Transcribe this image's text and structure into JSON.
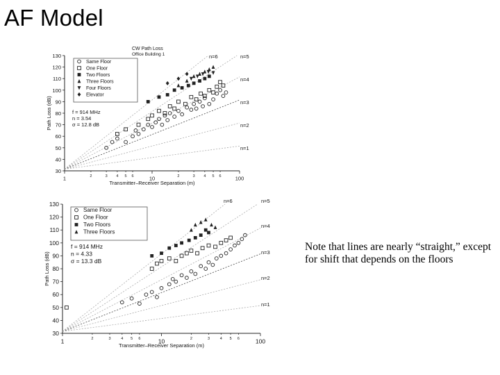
{
  "slide": {
    "title": "AF Model",
    "note": "Note that lines are nearly “straight,” except for shift that depends on the floors"
  },
  "chart_data": [
    {
      "type": "scatter",
      "title": "CW Path Loss",
      "subtitle": "Office Building 1",
      "xlabel": "Transmitter–Receiver Separation (m)",
      "ylabel": "Path Loss (dB)",
      "x_scale": "log",
      "xlim": [
        1,
        100
      ],
      "ylim": [
        30,
        130
      ],
      "x_major_ticks": [
        "1",
        "10",
        "100"
      ],
      "x_minor_ticks": [
        "2",
        "3",
        "4",
        "5",
        "6",
        "2",
        "3",
        "4",
        "5",
        "6"
      ],
      "y_ticks": [
        "30",
        "40",
        "50",
        "60",
        "70",
        "80",
        "90",
        "100",
        "110",
        "120",
        "130"
      ],
      "legend_position": "top-left",
      "annotation": [
        "f = 914 MHz",
        "n = 3.54",
        "σ = 12.8 dB"
      ],
      "reference_lines": [
        {
          "label": "n=1",
          "n": 1
        },
        {
          "label": "n=2",
          "n": 2
        },
        {
          "label": "n=3",
          "n": 3
        },
        {
          "label": "n=4",
          "n": 4
        },
        {
          "label": "n=5",
          "n": 5
        },
        {
          "label": "n=6",
          "n": 6
        }
      ],
      "series": [
        {
          "name": "Same Floor",
          "marker": "circle-open",
          "points": [
            [
              3,
              50
            ],
            [
              3.5,
              55
            ],
            [
              4,
              58
            ],
            [
              5,
              55
            ],
            [
              6,
              60
            ],
            [
              6.5,
              65
            ],
            [
              7,
              62
            ],
            [
              8,
              66
            ],
            [
              9,
              70
            ],
            [
              10,
              68
            ],
            [
              11,
              72
            ],
            [
              12,
              75
            ],
            [
              13,
              70
            ],
            [
              14,
              78
            ],
            [
              15,
              74
            ],
            [
              16,
              80
            ],
            [
              18,
              77
            ],
            [
              20,
              82
            ],
            [
              22,
              79
            ],
            [
              25,
              85
            ],
            [
              28,
              83
            ],
            [
              30,
              88
            ],
            [
              32,
              84
            ],
            [
              35,
              90
            ],
            [
              38,
              86
            ],
            [
              40,
              93
            ],
            [
              45,
              88
            ],
            [
              50,
              92
            ],
            [
              55,
              97
            ],
            [
              60,
              100
            ],
            [
              65,
              95
            ],
            [
              70,
              98
            ]
          ]
        },
        {
          "name": "One Floor",
          "marker": "square-open",
          "points": [
            [
              4,
              62
            ],
            [
              5,
              66
            ],
            [
              7,
              70
            ],
            [
              9,
              75
            ],
            [
              10,
              78
            ],
            [
              12,
              82
            ],
            [
              14,
              80
            ],
            [
              16,
              86
            ],
            [
              18,
              84
            ],
            [
              20,
              90
            ],
            [
              24,
              88
            ],
            [
              28,
              94
            ],
            [
              32,
              92
            ],
            [
              36,
              97
            ],
            [
              40,
              95
            ],
            [
              45,
              100
            ],
            [
              50,
              98
            ],
            [
              55,
              103
            ],
            [
              60,
              107
            ],
            [
              65,
              104
            ]
          ]
        },
        {
          "name": "Two Floors",
          "marker": "square-filled",
          "points": [
            [
              9,
              90
            ],
            [
              12,
              94
            ],
            [
              15,
              96
            ],
            [
              18,
              100
            ],
            [
              22,
              102
            ],
            [
              26,
              104
            ],
            [
              30,
              106
            ],
            [
              35,
              108
            ],
            [
              40,
              110
            ],
            [
              45,
              112
            ]
          ]
        },
        {
          "name": "Three Floors",
          "marker": "triangle-filled",
          "points": [
            [
              20,
              104
            ],
            [
              25,
              108
            ],
            [
              30,
              112
            ],
            [
              35,
              114
            ],
            [
              40,
              116
            ],
            [
              45,
              118
            ],
            [
              50,
              120
            ]
          ]
        },
        {
          "name": "Four Floors",
          "marker": "triangle-down-filled",
          "points": [
            [
              28,
              110
            ],
            [
              33,
              112
            ],
            [
              38,
              114
            ],
            [
              44,
              116
            ],
            [
              50,
              115
            ]
          ]
        },
        {
          "name": "Elevator",
          "marker": "diamond-filled",
          "points": [
            [
              15,
              106
            ],
            [
              20,
              110
            ],
            [
              25,
              114
            ]
          ]
        }
      ]
    },
    {
      "type": "scatter",
      "xlabel": "Transmitter–Receiver Separation (m)",
      "ylabel": "Path Loss (dB)",
      "x_scale": "log",
      "xlim": [
        1,
        100
      ],
      "ylim": [
        30,
        130
      ],
      "x_major_ticks": [
        "1",
        "10",
        "100"
      ],
      "x_minor_ticks": [
        "2",
        "3",
        "4",
        "5",
        "6",
        "2",
        "3",
        "4",
        "5",
        "6"
      ],
      "y_ticks": [
        "30",
        "40",
        "50",
        "60",
        "70",
        "80",
        "90",
        "100",
        "110",
        "120",
        "130"
      ],
      "legend_position": "top-left",
      "annotation": [
        "f = 914 MHz",
        "n = 4.33",
        "σ = 13.3 dB"
      ],
      "reference_lines": [
        {
          "label": "n=1",
          "n": 1
        },
        {
          "label": "n=2",
          "n": 2
        },
        {
          "label": "n=3",
          "n": 3
        },
        {
          "label": "n=4",
          "n": 4
        },
        {
          "label": "n=5",
          "n": 5
        },
        {
          "label": "n=6",
          "n": 6
        }
      ],
      "series": [
        {
          "name": "Same Floor",
          "marker": "circle-open",
          "points": [
            [
              4,
              54
            ],
            [
              5,
              57
            ],
            [
              6,
              53
            ],
            [
              7,
              60
            ],
            [
              8,
              62
            ],
            [
              9,
              58
            ],
            [
              10,
              65
            ],
            [
              12,
              68
            ],
            [
              13,
              72
            ],
            [
              14,
              70
            ],
            [
              16,
              75
            ],
            [
              18,
              73
            ],
            [
              20,
              78
            ],
            [
              22,
              76
            ],
            [
              25,
              82
            ],
            [
              28,
              80
            ],
            [
              30,
              85
            ],
            [
              33,
              83
            ],
            [
              36,
              88
            ],
            [
              40,
              90
            ],
            [
              45,
              92
            ],
            [
              50,
              95
            ],
            [
              55,
              98
            ],
            [
              60,
              100
            ],
            [
              65,
              103
            ],
            [
              70,
              106
            ]
          ]
        },
        {
          "name": "One Floor",
          "marker": "square-open",
          "points": [
            [
              1.1,
              50
            ],
            [
              8,
              80
            ],
            [
              9,
              84
            ],
            [
              10,
              86
            ],
            [
              12,
              88
            ],
            [
              14,
              86
            ],
            [
              16,
              90
            ],
            [
              18,
              92
            ],
            [
              20,
              94
            ],
            [
              23,
              92
            ],
            [
              26,
              96
            ],
            [
              30,
              98
            ],
            [
              35,
              97
            ],
            [
              40,
              100
            ],
            [
              45,
              102
            ],
            [
              50,
              104
            ]
          ]
        },
        {
          "name": "Two Floors",
          "marker": "square-filled",
          "points": [
            [
              8,
              90
            ],
            [
              10,
              92
            ],
            [
              12,
              96
            ],
            [
              14,
              98
            ],
            [
              16,
              100
            ],
            [
              19,
              102
            ],
            [
              22,
              104
            ],
            [
              25,
              106
            ],
            [
              28,
              110
            ],
            [
              30,
              108
            ]
          ]
        },
        {
          "name": "Three Floors",
          "marker": "triangle-filled",
          "points": [
            [
              20,
              110
            ],
            [
              22,
              114
            ],
            [
              25,
              116
            ],
            [
              28,
              118
            ],
            [
              32,
              114
            ],
            [
              35,
              112
            ]
          ]
        }
      ]
    }
  ]
}
